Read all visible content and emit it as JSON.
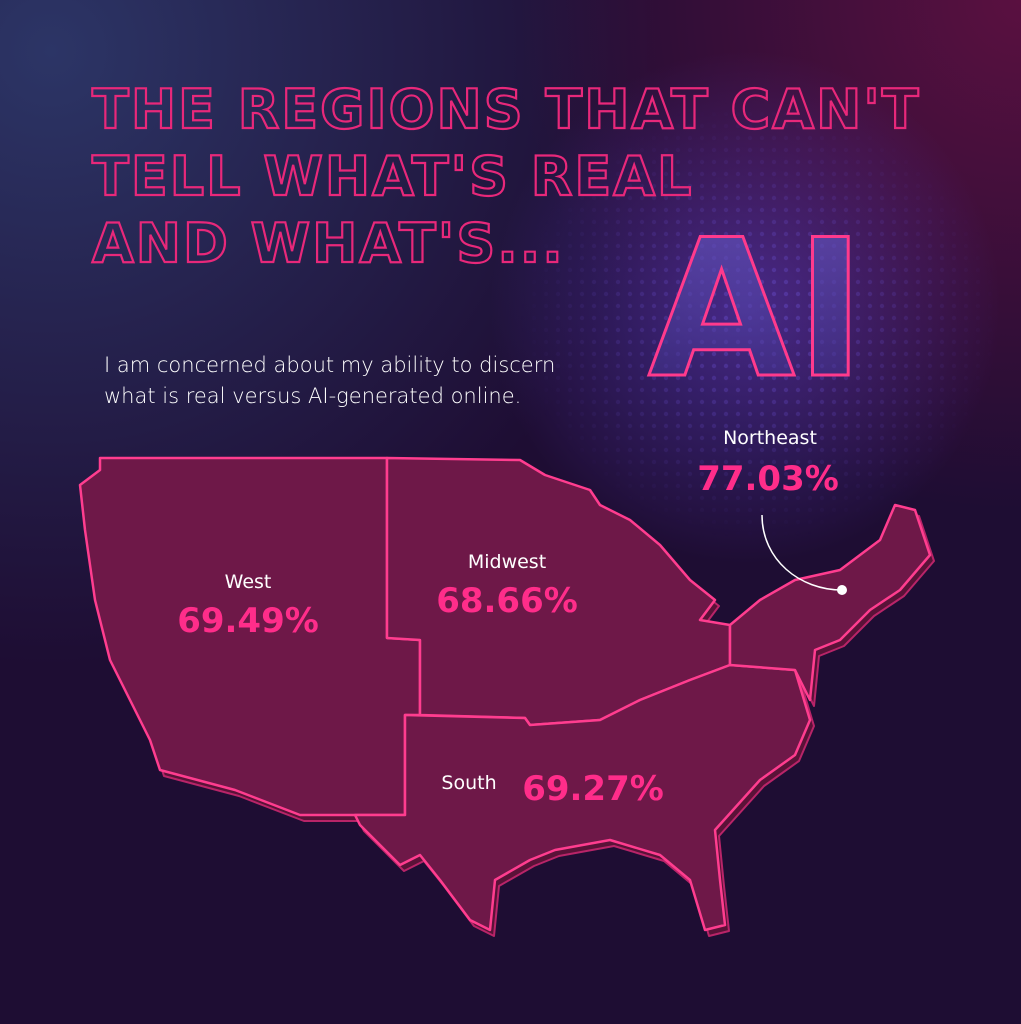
{
  "header": {
    "title_lines": [
      "THE REGIONS THAT CAN'T",
      "TELL WHAT'S REAL",
      "AND WHAT'S..."
    ],
    "highlight": "AI",
    "subtitle_lines": [
      "I am concerned about my ability to discern",
      "what is real versus AI-generated online."
    ]
  },
  "regions": [
    {
      "name": "West",
      "value": "69.49%"
    },
    {
      "name": "Midwest",
      "value": "68.66%"
    },
    {
      "name": "South",
      "value": "69.27%"
    },
    {
      "name": "Northeast",
      "value": "77.03%"
    }
  ]
}
